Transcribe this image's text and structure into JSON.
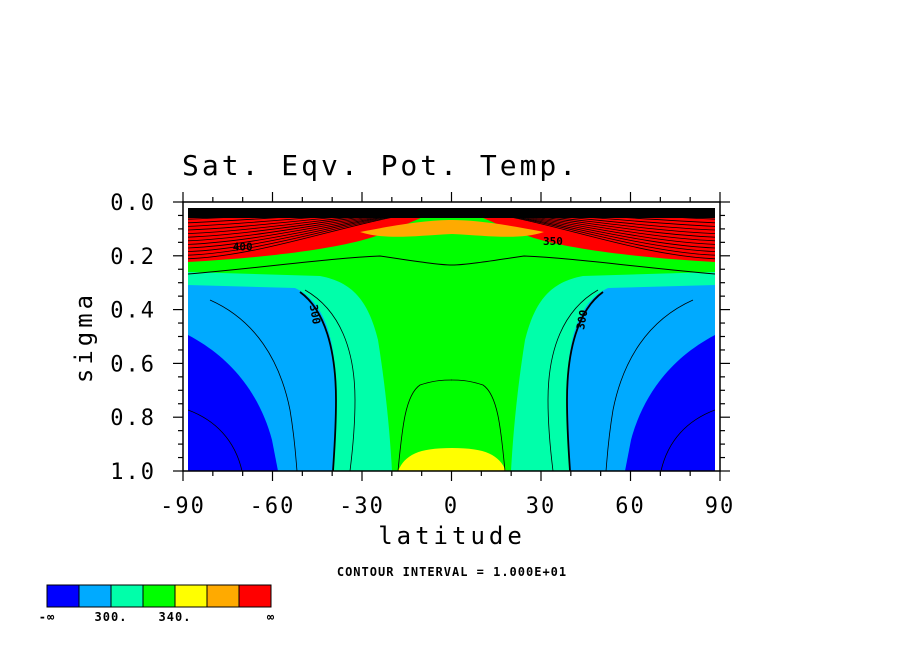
{
  "chart_data": {
    "type": "contour",
    "title": "Sat. Eqv. Pot. Temp.",
    "xlabel": "latitude",
    "ylabel": "sigma",
    "xlim": [
      -90,
      90
    ],
    "ylim": [
      0.0,
      1.0
    ],
    "y_inverted": true,
    "x_ticks": [
      "-90",
      "-60",
      "-30",
      "0",
      "30",
      "60",
      "90"
    ],
    "x_tick_values": [
      -90,
      -60,
      -30,
      0,
      30,
      60,
      90
    ],
    "y_ticks": [
      "0.0",
      "0.2",
      "0.4",
      "0.6",
      "0.8",
      "1.0"
    ],
    "y_tick_values": [
      0.0,
      0.2,
      0.4,
      0.6,
      0.8,
      1.0
    ],
    "contour_interval_text": "CONTOUR INTERVAL = 1.000E+01",
    "contour_labels": [
      {
        "text": "300",
        "lat": -47,
        "sigma": 0.42,
        "rotate": 80
      },
      {
        "text": "300",
        "lat": 45,
        "sigma": 0.44,
        "rotate": -80
      },
      {
        "text": "350",
        "lat": 34,
        "sigma": 0.16,
        "rotate": 0
      },
      {
        "text": "400",
        "lat": -70,
        "sigma": 0.18,
        "rotate": 0
      }
    ],
    "colorbar": {
      "colors": [
        "#0000ff",
        "#00aaff",
        "#00ffaa",
        "#00ff00",
        "#ffff00",
        "#ffaa00",
        "#ff0000"
      ],
      "labels": [
        "-∞",
        "300.",
        "340.",
        "∞"
      ]
    }
  }
}
